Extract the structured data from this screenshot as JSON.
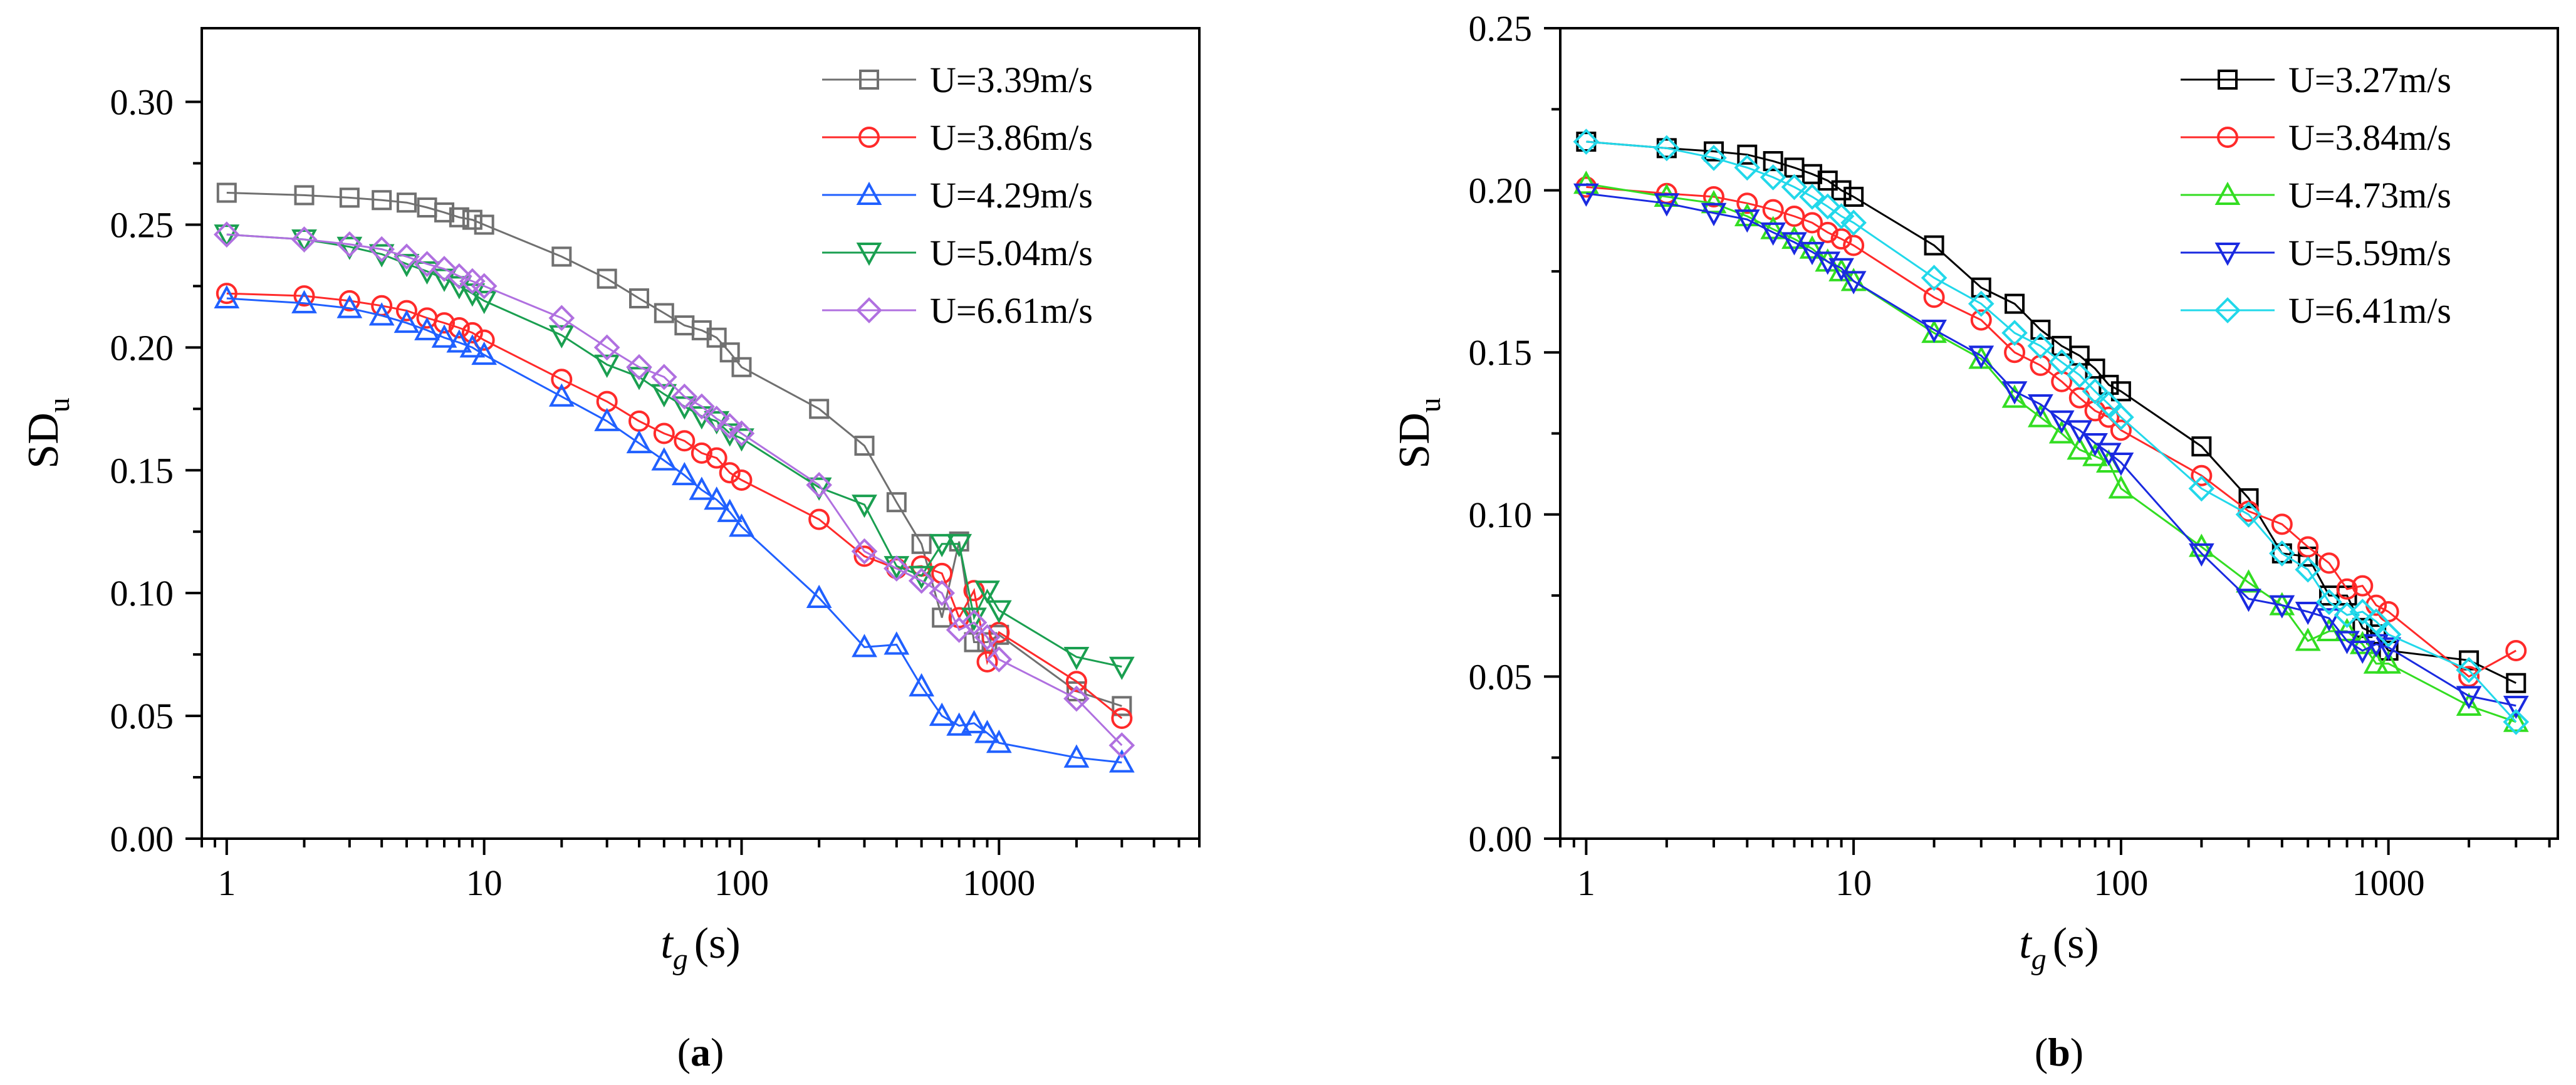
{
  "chart_data": [
    {
      "type": "line",
      "panel_label": {
        "open": "(",
        "letter": "a",
        "close": ")"
      },
      "xscale": "log",
      "xlim": [
        0.8,
        6000
      ],
      "ylim": [
        0,
        0.33
      ],
      "xticks": [
        1,
        10,
        100,
        1000
      ],
      "xtick_labels": [
        "1",
        "10",
        "100",
        "1000"
      ],
      "yticks": [
        0,
        0.05,
        0.1,
        0.15,
        0.2,
        0.25,
        0.3
      ],
      "ytick_labels": [
        "0.00",
        "0.05",
        "0.10",
        "0.15",
        "0.20",
        "0.25",
        "0.30"
      ],
      "xlabel": {
        "main": "t",
        "sub": "g",
        "unit": "(s)"
      },
      "ylabel": {
        "main": "SD",
        "sub": "u"
      },
      "legend_position": "top-right",
      "series": [
        {
          "name": "U=3.39m/s",
          "color": "#707070",
          "marker": "square",
          "x": [
            1,
            2,
            3,
            4,
            5,
            6,
            7,
            8,
            9,
            10,
            20,
            30,
            40,
            50,
            60,
            70,
            80,
            90,
            100,
            200,
            300,
            400,
            500,
            600,
            700,
            800,
            900,
            1000,
            2000,
            3000
          ],
          "y": [
            0.263,
            0.262,
            0.261,
            0.26,
            0.259,
            0.257,
            0.255,
            0.253,
            0.252,
            0.25,
            0.237,
            0.228,
            0.22,
            0.214,
            0.209,
            0.207,
            0.204,
            0.198,
            0.192,
            0.175,
            0.16,
            0.137,
            0.12,
            0.09,
            0.121,
            0.08,
            0.08,
            0.083,
            0.06,
            0.054
          ]
        },
        {
          "name": "U=3.86m/s",
          "color": "#ff2a2a",
          "marker": "circle",
          "x": [
            1,
            2,
            3,
            4,
            5,
            6,
            7,
            8,
            9,
            10,
            20,
            30,
            40,
            50,
            60,
            70,
            80,
            90,
            100,
            200,
            300,
            400,
            500,
            600,
            700,
            800,
            900,
            1000,
            2000,
            3000
          ],
          "y": [
            0.222,
            0.221,
            0.219,
            0.217,
            0.215,
            0.212,
            0.21,
            0.208,
            0.206,
            0.203,
            0.187,
            0.178,
            0.17,
            0.165,
            0.162,
            0.157,
            0.155,
            0.149,
            0.146,
            0.13,
            0.115,
            0.11,
            0.111,
            0.108,
            0.09,
            0.101,
            0.072,
            0.084,
            0.064,
            0.049
          ]
        },
        {
          "name": "U=4.29m/s",
          "color": "#2060ff",
          "marker": "triangle-up",
          "x": [
            1,
            2,
            3,
            4,
            5,
            6,
            7,
            8,
            9,
            10,
            20,
            30,
            40,
            50,
            60,
            70,
            80,
            90,
            100,
            200,
            300,
            400,
            500,
            600,
            700,
            800,
            900,
            1000,
            2000,
            3000
          ],
          "y": [
            0.22,
            0.218,
            0.216,
            0.213,
            0.21,
            0.207,
            0.204,
            0.202,
            0.2,
            0.197,
            0.18,
            0.17,
            0.161,
            0.154,
            0.148,
            0.142,
            0.138,
            0.133,
            0.127,
            0.098,
            0.078,
            0.079,
            0.062,
            0.05,
            0.046,
            0.047,
            0.043,
            0.039,
            0.033,
            0.031
          ]
        },
        {
          "name": "U=5.04m/s",
          "color": "#1a9f50",
          "marker": "triangle-down",
          "x": [
            1,
            2,
            3,
            4,
            5,
            6,
            7,
            8,
            9,
            10,
            20,
            30,
            40,
            50,
            60,
            70,
            80,
            90,
            100,
            200,
            300,
            400,
            500,
            600,
            700,
            800,
            900,
            1000,
            2000,
            3000
          ],
          "y": [
            0.246,
            0.244,
            0.241,
            0.238,
            0.234,
            0.231,
            0.228,
            0.225,
            0.222,
            0.219,
            0.205,
            0.193,
            0.188,
            0.181,
            0.176,
            0.172,
            0.17,
            0.165,
            0.163,
            0.143,
            0.136,
            0.111,
            0.107,
            0.12,
            0.12,
            0.09,
            0.101,
            0.093,
            0.074,
            0.07
          ]
        },
        {
          "name": "U=6.61m/s",
          "color": "#b070e0",
          "marker": "diamond",
          "x": [
            1,
            2,
            3,
            4,
            5,
            6,
            7,
            8,
            9,
            10,
            20,
            30,
            40,
            50,
            60,
            70,
            80,
            90,
            100,
            200,
            300,
            400,
            500,
            600,
            700,
            800,
            900,
            1000,
            2000,
            3000
          ],
          "y": [
            0.246,
            0.244,
            0.242,
            0.24,
            0.237,
            0.234,
            0.232,
            0.229,
            0.227,
            0.225,
            0.212,
            0.2,
            0.192,
            0.188,
            0.18,
            0.176,
            0.171,
            0.168,
            0.165,
            0.144,
            0.117,
            0.11,
            0.105,
            0.1,
            0.085,
            0.088,
            0.082,
            0.073,
            0.057,
            0.038
          ]
        }
      ]
    },
    {
      "type": "line",
      "panel_label": {
        "open": "(",
        "letter": "b",
        "close": ")"
      },
      "xscale": "log",
      "xlim": [
        0.8,
        4300
      ],
      "ylim": [
        0,
        0.25
      ],
      "xticks": [
        1,
        10,
        100,
        1000
      ],
      "xtick_labels": [
        "1",
        "10",
        "100",
        "1000"
      ],
      "yticks": [
        0,
        0.05,
        0.1,
        0.15,
        0.2,
        0.25
      ],
      "ytick_labels": [
        "0.00",
        "0.05",
        "0.10",
        "0.15",
        "0.20",
        "0.25"
      ],
      "xlabel": {
        "main": "t",
        "sub": "g",
        "unit": "(s)"
      },
      "ylabel": {
        "main": "SD",
        "sub": "u"
      },
      "legend_position": "top-right",
      "series": [
        {
          "name": "U=3.27m/s",
          "color": "#000000",
          "marker": "square",
          "x": [
            1,
            2,
            3,
            4,
            5,
            6,
            7,
            8,
            9,
            10,
            20,
            30,
            40,
            50,
            60,
            70,
            80,
            90,
            100,
            200,
            300,
            400,
            500,
            600,
            700,
            800,
            900,
            1000,
            2000,
            3000
          ],
          "y": [
            0.215,
            0.213,
            0.212,
            0.211,
            0.209,
            0.207,
            0.205,
            0.203,
            0.2,
            0.198,
            0.183,
            0.17,
            0.165,
            0.157,
            0.152,
            0.149,
            0.145,
            0.14,
            0.138,
            0.121,
            0.105,
            0.088,
            0.087,
            0.075,
            0.075,
            0.065,
            0.063,
            0.058,
            0.055,
            0.048
          ]
        },
        {
          "name": "U=3.84m/s",
          "color": "#ff2a2a",
          "marker": "circle",
          "x": [
            1,
            2,
            3,
            4,
            5,
            6,
            7,
            8,
            9,
            10,
            20,
            30,
            40,
            50,
            60,
            70,
            80,
            90,
            100,
            200,
            300,
            400,
            500,
            600,
            700,
            800,
            900,
            1000,
            2000,
            3000
          ],
          "y": [
            0.201,
            0.199,
            0.198,
            0.196,
            0.194,
            0.192,
            0.19,
            0.187,
            0.185,
            0.183,
            0.167,
            0.16,
            0.15,
            0.146,
            0.141,
            0.136,
            0.132,
            0.13,
            0.126,
            0.112,
            0.101,
            0.097,
            0.09,
            0.085,
            0.077,
            0.078,
            0.072,
            0.07,
            0.05,
            0.058
          ]
        },
        {
          "name": "U=4.73m/s",
          "color": "#33dd22",
          "marker": "triangle-up",
          "x": [
            1,
            2,
            3,
            4,
            5,
            6,
            7,
            8,
            9,
            10,
            20,
            30,
            40,
            50,
            60,
            70,
            80,
            90,
            100,
            200,
            300,
            400,
            500,
            600,
            700,
            800,
            900,
            1000,
            2000,
            3000
          ],
          "y": [
            0.202,
            0.198,
            0.196,
            0.192,
            0.188,
            0.185,
            0.182,
            0.178,
            0.175,
            0.172,
            0.156,
            0.148,
            0.136,
            0.13,
            0.125,
            0.12,
            0.118,
            0.116,
            0.108,
            0.09,
            0.079,
            0.072,
            0.061,
            0.064,
            0.064,
            0.06,
            0.054,
            0.054,
            0.041,
            0.036
          ]
        },
        {
          "name": "U=5.59m/s",
          "color": "#1a2ae0",
          "marker": "triangle-down",
          "x": [
            1,
            2,
            3,
            4,
            5,
            6,
            7,
            8,
            9,
            10,
            20,
            30,
            40,
            50,
            60,
            70,
            80,
            90,
            100,
            200,
            300,
            400,
            500,
            600,
            700,
            800,
            900,
            1000,
            2000,
            3000
          ],
          "y": [
            0.199,
            0.196,
            0.193,
            0.191,
            0.187,
            0.184,
            0.181,
            0.178,
            0.176,
            0.172,
            0.157,
            0.149,
            0.138,
            0.134,
            0.129,
            0.126,
            0.122,
            0.119,
            0.116,
            0.088,
            0.074,
            0.072,
            0.07,
            0.068,
            0.061,
            0.058,
            0.06,
            0.059,
            0.044,
            0.041
          ]
        },
        {
          "name": "U=6.41m/s",
          "color": "#22d8ea",
          "marker": "diamond",
          "x": [
            1,
            2,
            3,
            4,
            5,
            6,
            7,
            8,
            9,
            10,
            20,
            30,
            40,
            50,
            60,
            70,
            80,
            90,
            100,
            200,
            300,
            400,
            500,
            600,
            700,
            800,
            900,
            1000,
            2000,
            3000
          ],
          "y": [
            0.215,
            0.213,
            0.21,
            0.207,
            0.204,
            0.201,
            0.198,
            0.195,
            0.192,
            0.19,
            0.173,
            0.165,
            0.156,
            0.152,
            0.147,
            0.143,
            0.138,
            0.134,
            0.13,
            0.108,
            0.1,
            0.088,
            0.083,
            0.073,
            0.069,
            0.07,
            0.067,
            0.063,
            0.052,
            0.036
          ]
        }
      ]
    }
  ]
}
